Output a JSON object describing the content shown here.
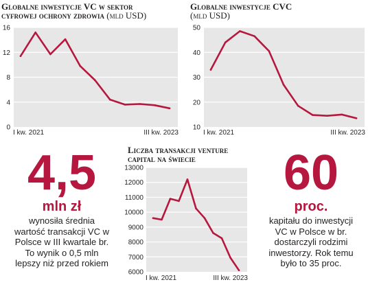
{
  "colors": {
    "line": "#b5173e",
    "plot_bg": "#e8e7e7",
    "grid": "#ffffff",
    "accent": "#b5173e"
  },
  "chart_data": [
    {
      "type": "line",
      "title_line1": "Globalne inwestycje VC w sektor",
      "title_line2": "cyfrowej ochrony zdrowia",
      "unit": "(mld USD)",
      "x_start_label": "I kw. 2021",
      "x_end_label": "III kw. 2023",
      "ylim": [
        0,
        16
      ],
      "yticks": [
        0,
        4,
        8,
        12,
        16
      ],
      "values": [
        11.4,
        15.2,
        11.7,
        14.1,
        9.8,
        7.5,
        4.4,
        3.6,
        3.7,
        3.5,
        3.0
      ]
    },
    {
      "type": "line",
      "title_line1": "Globalne inwestycje CVC",
      "title_line2": "",
      "unit": "(mld USD)",
      "x_start_label": "I kw. 2021",
      "x_end_label": "III kw. 2023",
      "ylim": [
        10,
        50
      ],
      "yticks": [
        10,
        20,
        30,
        40,
        50
      ],
      "values": [
        33,
        44,
        48.5,
        46.5,
        40.5,
        27,
        18.5,
        14.8,
        14.5,
        15,
        13.5
      ]
    },
    {
      "type": "line",
      "title_line1": "Liczba transakcji venture",
      "title_line2": "capital na świecie",
      "unit": "",
      "x_start_label": "I kw. 2021",
      "x_end_label": "III kw. 2023",
      "ylim": [
        6000,
        13000
      ],
      "yticks": [
        6000,
        7000,
        8000,
        9000,
        10000,
        11000,
        12000,
        13000
      ],
      "values": [
        9600,
        9500,
        10900,
        10750,
        12200,
        10250,
        9600,
        8600,
        8250,
        6950,
        6100
      ]
    }
  ],
  "stats": {
    "left": {
      "number": "4,5",
      "unit": "mln zł",
      "lines": [
        "wynosiła średnia",
        "wartość transakcji VC w",
        "Polsce w III kwartale br.",
        "To wynik o 0,5 mln",
        "lepszy niż przed rokiem"
      ]
    },
    "right": {
      "number": "60",
      "unit": "proc.",
      "lines": [
        "kapitału do inwestycji",
        "VC w Polsce w br.",
        "dostarczyli rodzimi",
        "inwestorzy. Rok temu",
        "było to 35 proc."
      ]
    }
  }
}
